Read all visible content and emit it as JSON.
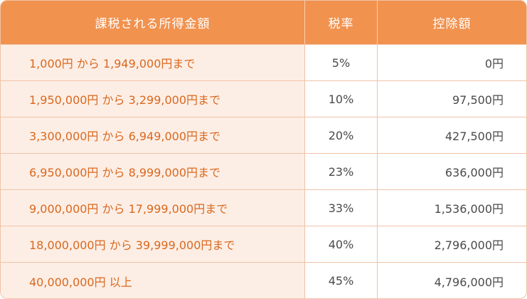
{
  "table": {
    "headers": {
      "income": "課税される所得金額",
      "rate": "税率",
      "deduction": "控除額"
    },
    "rows": [
      {
        "income": "1,000円 から 1,949,000円まで",
        "rate": "5%",
        "deduction": "0円"
      },
      {
        "income": "1,950,000円 から 3,299,000円まで",
        "rate": "10%",
        "deduction": "97,500円"
      },
      {
        "income": "3,300,000円 から 6,949,000円まで",
        "rate": "20%",
        "deduction": "427,500円"
      },
      {
        "income": "6,950,000円 から 8,999,000円まで",
        "rate": "23%",
        "deduction": "636,000円"
      },
      {
        "income": "9,000,000円 から 17,999,000円まで",
        "rate": "33%",
        "deduction": "1,536,000円"
      },
      {
        "income": "18,000,000円 から 39,999,000円まで",
        "rate": "40%",
        "deduction": "2,796,000円"
      },
      {
        "income": "40,000,000円 以上",
        "rate": "45%",
        "deduction": "4,796,000円"
      }
    ]
  },
  "colors": {
    "header_bg": "#f1924f",
    "header_text": "#ffffff",
    "income_bg": "#fdeee5",
    "income_text": "#d9681f",
    "border": "#efc3a6",
    "body_text": "#4a4a4a"
  }
}
